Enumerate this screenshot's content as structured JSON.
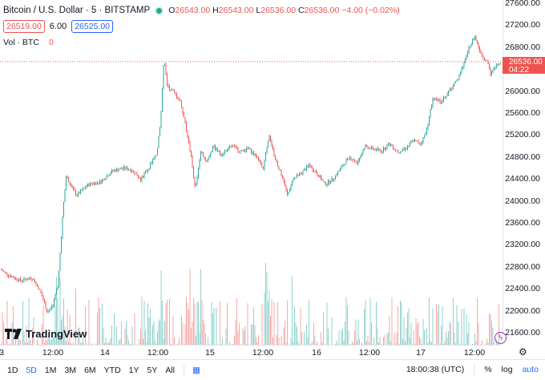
{
  "legend": {
    "title": "Bitcoin / U.S. Dollar · 5 · BITSTAMP",
    "open_label": "O",
    "open": "26543.00",
    "high_label": "H",
    "high": "26543.00",
    "low_label": "L",
    "low": "26536.00",
    "close_label": "C",
    "close": "26536.00",
    "change": "−4.00 (−0.02%)",
    "bid": "26519.00",
    "spread": "6.00",
    "ask": "26525.00",
    "volume_label": "Vol · BTC",
    "volume_value": "0"
  },
  "price_axis": [
    "27600.00",
    "27200.00",
    "26800.00",
    "26400.00",
    "26000.00",
    "25600.00",
    "25200.00",
    "24800.00",
    "24400.00",
    "24000.00",
    "23600.00",
    "23200.00",
    "22800.00",
    "22400.00",
    "22000.00",
    "21600.00"
  ],
  "last_price": {
    "price": "26536.00",
    "countdown": "04:22"
  },
  "time_axis": [
    "3",
    "12:00",
    "14",
    "12:00",
    "15",
    "12:00",
    "16",
    "12:00",
    "17",
    "12:00"
  ],
  "chart_data": {
    "type": "candlestick",
    "symbol": "BTCUSD",
    "exchange": "BITSTAMP",
    "interval": "5",
    "ylim": [
      21600,
      27600
    ],
    "last_price": 26536,
    "price_path": [
      [
        0,
        22750
      ],
      [
        10,
        22650
      ],
      [
        25,
        22550
      ],
      [
        40,
        22600
      ],
      [
        50,
        22350
      ],
      [
        58,
        22000
      ],
      [
        65,
        22050
      ],
      [
        72,
        22500
      ],
      [
        78,
        23800
      ],
      [
        82,
        24450
      ],
      [
        88,
        24300
      ],
      [
        95,
        24100
      ],
      [
        110,
        24300
      ],
      [
        125,
        24350
      ],
      [
        140,
        24550
      ],
      [
        155,
        24600
      ],
      [
        165,
        24550
      ],
      [
        175,
        24400
      ],
      [
        185,
        24600
      ],
      [
        195,
        24850
      ],
      [
        200,
        25500
      ],
      [
        204,
        26600
      ],
      [
        208,
        26100
      ],
      [
        215,
        26000
      ],
      [
        225,
        25800
      ],
      [
        232,
        25300
      ],
      [
        238,
        24800
      ],
      [
        243,
        24200
      ],
      [
        250,
        24900
      ],
      [
        258,
        24700
      ],
      [
        265,
        25000
      ],
      [
        275,
        24850
      ],
      [
        290,
        25000
      ],
      [
        300,
        24900
      ],
      [
        310,
        24950
      ],
      [
        320,
        24800
      ],
      [
        328,
        24600
      ],
      [
        335,
        25200
      ],
      [
        342,
        24800
      ],
      [
        350,
        24500
      ],
      [
        358,
        24100
      ],
      [
        365,
        24400
      ],
      [
        375,
        24500
      ],
      [
        385,
        24650
      ],
      [
        395,
        24500
      ],
      [
        405,
        24300
      ],
      [
        415,
        24400
      ],
      [
        425,
        24600
      ],
      [
        435,
        24800
      ],
      [
        445,
        24700
      ],
      [
        455,
        25000
      ],
      [
        465,
        24950
      ],
      [
        475,
        24900
      ],
      [
        485,
        25050
      ],
      [
        495,
        24900
      ],
      [
        505,
        24950
      ],
      [
        515,
        25100
      ],
      [
        525,
        25050
      ],
      [
        532,
        25300
      ],
      [
        540,
        25900
      ],
      [
        550,
        25800
      ],
      [
        560,
        26000
      ],
      [
        570,
        26200
      ],
      [
        578,
        26500
      ],
      [
        585,
        26800
      ],
      [
        592,
        27000
      ],
      [
        600,
        26650
      ],
      [
        607,
        26550
      ],
      [
        612,
        26300
      ],
      [
        620,
        26500
      ],
      [
        627,
        26536
      ]
    ],
    "volume_max_label": "0"
  },
  "bottom_bar": {
    "timeframes": [
      "1D",
      "5D",
      "1M",
      "3M",
      "6M",
      "YTD",
      "1Y",
      "5Y",
      "All"
    ],
    "selected": "5D",
    "clock": "18:00:38 (UTC)",
    "percent": "%",
    "log": "log",
    "auto": "auto"
  },
  "logo_text": "TradingView",
  "colors": {
    "up": "#26a69a",
    "down": "#ef5350",
    "accent": "#2962ff"
  }
}
